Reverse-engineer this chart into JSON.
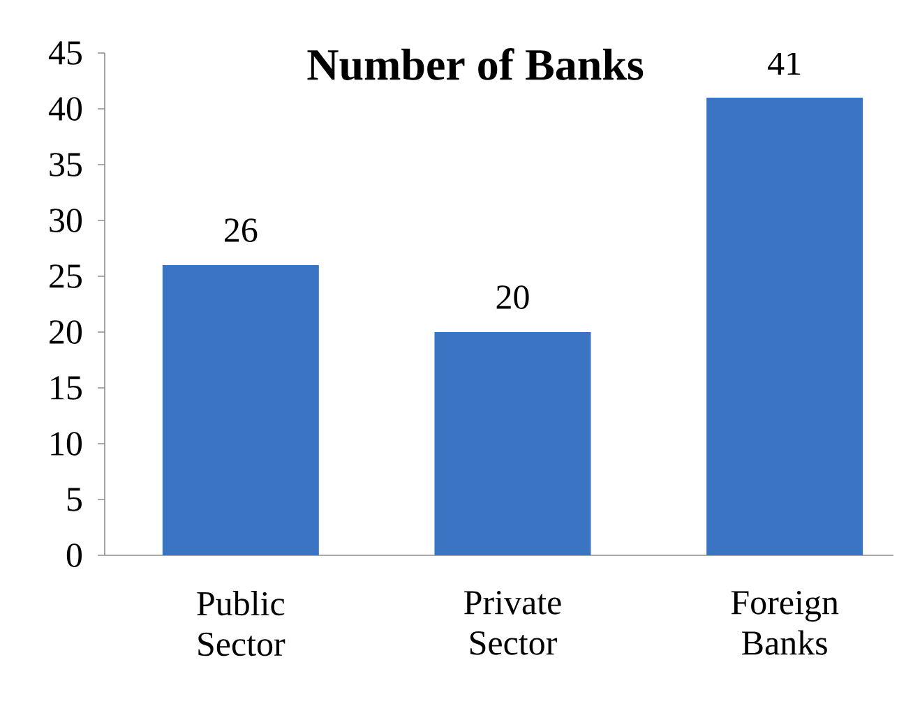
{
  "chart_data": {
    "type": "bar",
    "title": "Number of Banks",
    "categories": [
      "Public Sector",
      "Private Sector",
      "Foreign Banks"
    ],
    "values": [
      26,
      20,
      41
    ],
    "color": "#3a74c2",
    "ylim": [
      0,
      45
    ],
    "yticks": [
      0,
      5,
      10,
      15,
      20,
      25,
      30,
      35,
      40,
      45
    ],
    "data_labels": true,
    "grid": false
  }
}
